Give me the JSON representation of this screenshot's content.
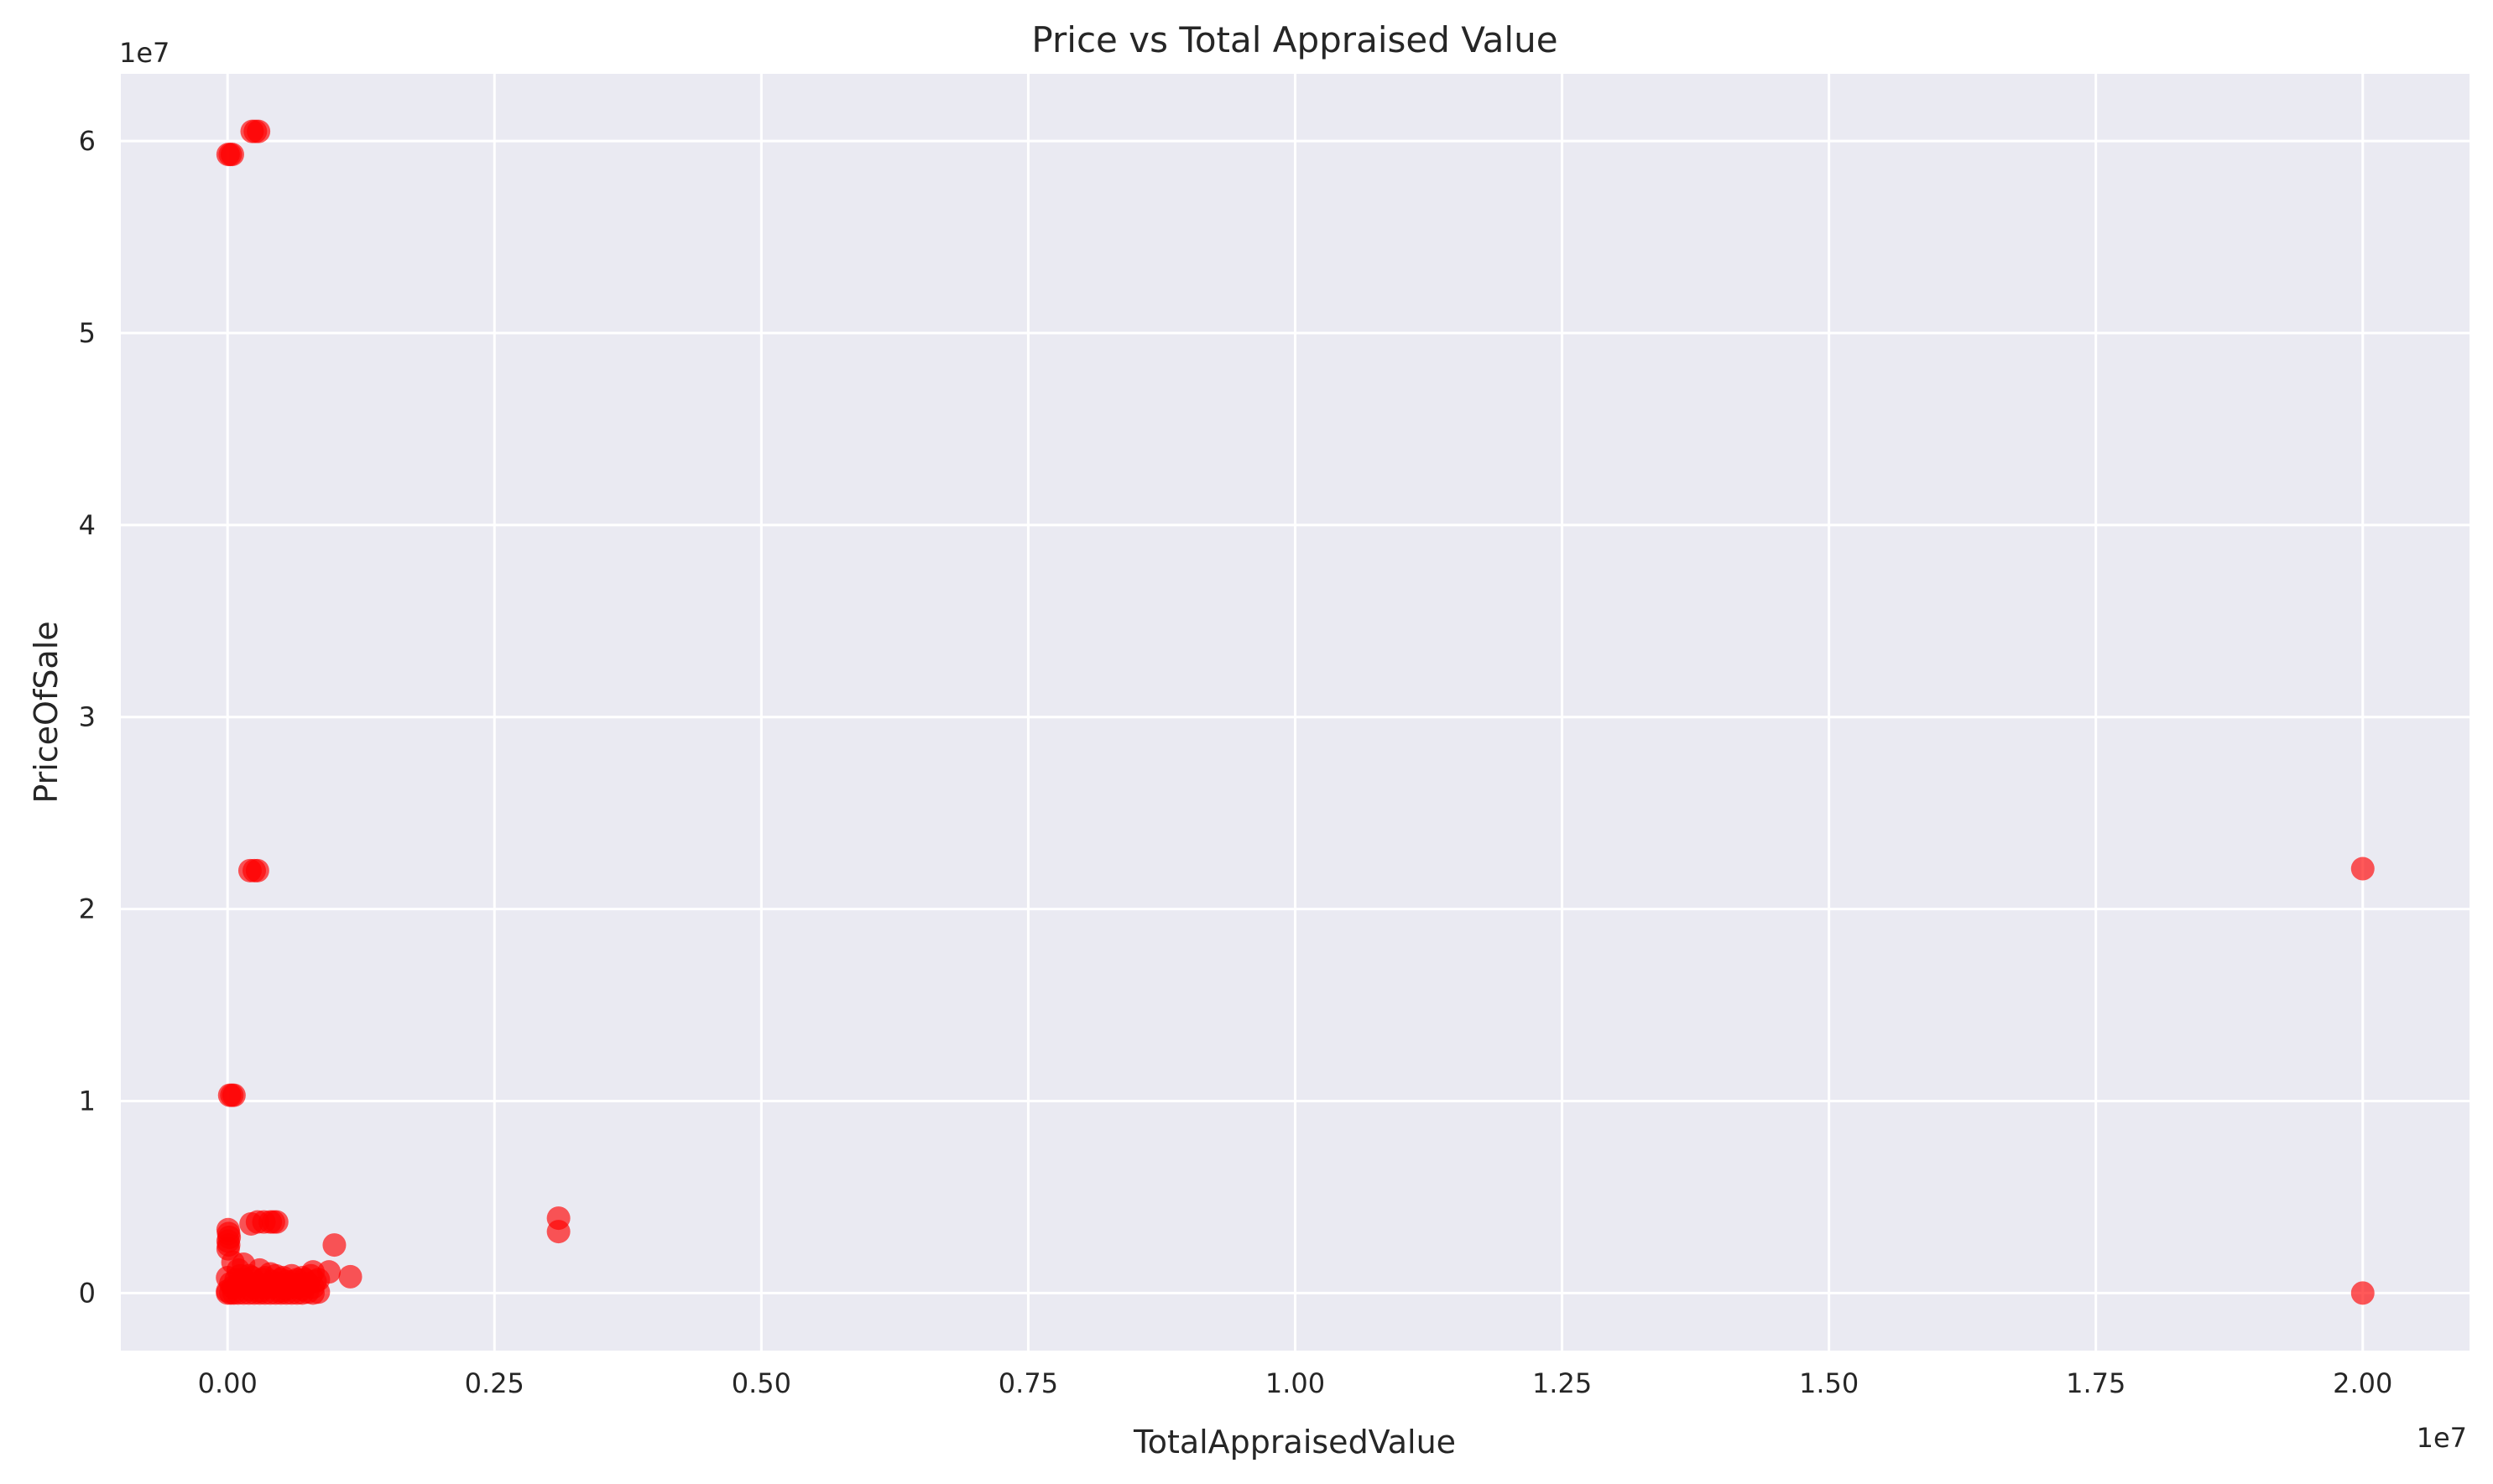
{
  "chart_data": {
    "type": "scatter",
    "title": "Price vs Total Appraised Value",
    "xlabel": "TotalAppraisedValue",
    "ylabel": "PriceOfSale",
    "x_offset_label": "1e7",
    "y_offset_label": "1e7",
    "xlim": [
      -1000000,
      21000000
    ],
    "ylim": [
      -3000000,
      63500000
    ],
    "x_ticks": [
      0,
      2500000,
      5000000,
      7500000,
      10000000,
      12500000,
      15000000,
      17500000,
      20000000
    ],
    "x_tick_labels": [
      "0.00",
      "0.25",
      "0.50",
      "0.75",
      "1.00",
      "1.25",
      "1.50",
      "1.75",
      "2.00"
    ],
    "y_ticks": [
      0,
      10000000,
      20000000,
      30000000,
      40000000,
      50000000,
      60000000
    ],
    "y_tick_labels": [
      "0",
      "1",
      "2",
      "3",
      "4",
      "5",
      "6"
    ],
    "grid": true,
    "marker_color": "#ff0000",
    "marker_opacity": 0.65,
    "background_color": "#eaeaf2",
    "points": [
      [
        5000,
        59300000
      ],
      [
        25000,
        59300000
      ],
      [
        45000,
        59300000
      ],
      [
        230000,
        60500000
      ],
      [
        260000,
        60500000
      ],
      [
        290000,
        60500000
      ],
      [
        210000,
        22000000
      ],
      [
        250000,
        22000000
      ],
      [
        280000,
        22000000
      ],
      [
        20000,
        10300000
      ],
      [
        40000,
        10300000
      ],
      [
        60000,
        10300000
      ],
      [
        5000,
        3300000
      ],
      [
        10000,
        3100000
      ],
      [
        15000,
        2900000
      ],
      [
        5000,
        2700000
      ],
      [
        10000,
        2500000
      ],
      [
        5000,
        2300000
      ],
      [
        220000,
        3600000
      ],
      [
        280000,
        3700000
      ],
      [
        340000,
        3700000
      ],
      [
        400000,
        3700000
      ],
      [
        430000,
        3700000
      ],
      [
        460000,
        3700000
      ],
      [
        1000000,
        2500000
      ],
      [
        3100000,
        3900000
      ],
      [
        3100000,
        3200000
      ],
      [
        20000000,
        22100000
      ],
      [
        20000000,
        0
      ],
      [
        1150000,
        850000
      ],
      [
        950000,
        1100000
      ],
      [
        850000,
        700000
      ],
      [
        800000,
        1100000
      ],
      [
        750000,
        500000
      ],
      [
        700000,
        800000
      ],
      [
        650000,
        300000
      ],
      [
        600000,
        900000
      ],
      [
        550000,
        200000
      ],
      [
        500000,
        700000
      ],
      [
        450000,
        500000
      ],
      [
        400000,
        1000000
      ],
      [
        350000,
        300000
      ],
      [
        300000,
        1200000
      ],
      [
        250000,
        600000
      ],
      [
        200000,
        900000
      ],
      [
        150000,
        1500000
      ],
      [
        100000,
        1200000
      ],
      [
        50000,
        1600000
      ],
      [
        0,
        800000
      ],
      [
        100000,
        400000
      ],
      [
        200000,
        200000
      ],
      [
        300000,
        100000
      ],
      [
        400000,
        300000
      ],
      [
        500000,
        100000
      ],
      [
        600000,
        400000
      ],
      [
        700000,
        200000
      ],
      [
        800000,
        300000
      ],
      [
        850000,
        50000
      ],
      [
        650000,
        700000
      ],
      [
        550000,
        600000
      ],
      [
        450000,
        900000
      ],
      [
        350000,
        800000
      ],
      [
        250000,
        300000
      ],
      [
        150000,
        700000
      ],
      [
        50000,
        300000
      ],
      [
        0,
        100000
      ],
      [
        0,
        0
      ],
      [
        30000,
        0
      ],
      [
        60000,
        0
      ],
      [
        100000,
        0
      ],
      [
        150000,
        0
      ],
      [
        200000,
        0
      ],
      [
        250000,
        0
      ],
      [
        300000,
        0
      ],
      [
        350000,
        0
      ],
      [
        400000,
        0
      ],
      [
        450000,
        0
      ],
      [
        500000,
        0
      ],
      [
        550000,
        0
      ],
      [
        600000,
        0
      ],
      [
        650000,
        0
      ],
      [
        700000,
        0
      ],
      [
        750000,
        50000
      ],
      [
        800000,
        0
      ],
      [
        30000,
        500000
      ],
      [
        80000,
        700000
      ],
      [
        120000,
        900000
      ],
      [
        180000,
        500000
      ],
      [
        230000,
        800000
      ],
      [
        280000,
        500000
      ],
      [
        330000,
        700000
      ],
      [
        380000,
        400000
      ],
      [
        420000,
        600000
      ],
      [
        480000,
        400000
      ],
      [
        520000,
        800000
      ],
      [
        580000,
        500000
      ],
      [
        620000,
        600000
      ],
      [
        680000,
        400000
      ],
      [
        720000,
        700000
      ],
      [
        780000,
        900000
      ],
      [
        820000,
        600000
      ]
    ]
  }
}
